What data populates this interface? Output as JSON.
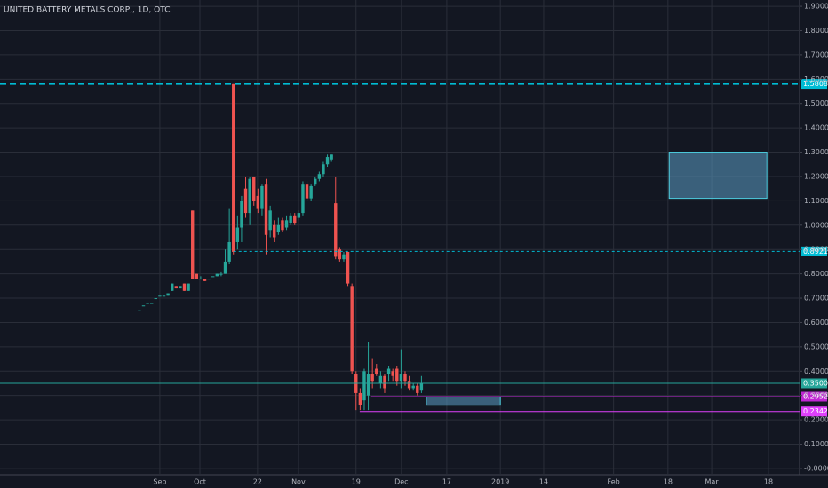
{
  "chart_data": {
    "type": "candlestick",
    "title": "UNITED BATTERY METALS CORP,, 1D, OTC",
    "up_color": "#26a69a",
    "down_color": "#ef5350",
    "grid": true,
    "categories": [
      null,
      null,
      null,
      null,
      null,
      null,
      null,
      null,
      null,
      null,
      null,
      null,
      null,
      null,
      null,
      null,
      null,
      null,
      null,
      null,
      null,
      null,
      null,
      null,
      null,
      null,
      null,
      null,
      null,
      null,
      null,
      null,
      null,
      null,
      null,
      null,
      null,
      null,
      null,
      null,
      null,
      null,
      null,
      null,
      null,
      null,
      null,
      null,
      null,
      null,
      null,
      null,
      null,
      null,
      null,
      null,
      null,
      null,
      null,
      null,
      null,
      null,
      null,
      null,
      null,
      null,
      null,
      null,
      null,
      null
    ],
    "open": [
      0.65,
      0.67,
      0.68,
      0.68,
      0.7,
      0.71,
      0.71,
      0.71,
      0.73,
      0.75,
      0.74,
      0.76,
      0.73,
      1.06,
      0.8,
      0.78,
      0.78,
      0.78,
      0.79,
      0.79,
      0.8,
      0.8,
      0.85,
      1.58,
      0.93,
      0.99,
      1.15,
      1.05,
      1.2,
      1.12,
      1.07,
      1.17,
      0.98,
      1.0,
      0.97,
      1.02,
      0.99,
      1.01,
      1.04,
      1.03,
      1.05,
      1.17,
      1.11,
      1.17,
      1.19,
      1.21,
      1.25,
      1.27,
      1.09,
      0.9,
      0.86,
      0.89,
      0.75,
      0.39,
      0.31,
      0.28,
      0.3,
      0.39,
      0.41,
      0.35,
      0.38,
      0.39,
      0.4,
      0.41,
      0.36,
      0.39,
      0.36,
      0.33,
      0.34,
      0.32
    ],
    "high": [
      0.65,
      0.67,
      0.68,
      0.68,
      0.7,
      0.71,
      0.71,
      0.72,
      0.76,
      0.75,
      0.75,
      0.76,
      0.76,
      1.06,
      0.8,
      0.79,
      0.78,
      0.78,
      0.79,
      0.8,
      0.81,
      0.9,
      1.07,
      1.58,
      1.04,
      1.12,
      1.2,
      1.2,
      1.2,
      1.15,
      1.17,
      1.19,
      1.08,
      1.02,
      1.03,
      1.03,
      1.04,
      1.05,
      1.05,
      1.06,
      1.18,
      1.18,
      1.17,
      1.2,
      1.22,
      1.26,
      1.29,
      1.29,
      1.2,
      0.91,
      0.89,
      0.89,
      0.76,
      0.4,
      0.33,
      0.41,
      0.52,
      0.45,
      0.43,
      0.4,
      0.39,
      0.42,
      0.41,
      0.42,
      0.49,
      0.4,
      0.38,
      0.35,
      0.35,
      0.38
    ],
    "low": [
      0.65,
      0.67,
      0.68,
      0.68,
      0.7,
      0.71,
      0.71,
      0.71,
      0.73,
      0.74,
      0.74,
      0.73,
      0.73,
      0.78,
      0.78,
      0.78,
      0.77,
      0.78,
      0.79,
      0.79,
      0.79,
      0.8,
      0.84,
      0.88,
      0.9,
      0.93,
      1.03,
      1.0,
      1.08,
      1.05,
      1.04,
      0.88,
      0.95,
      0.93,
      0.96,
      0.97,
      0.98,
      1.0,
      1.0,
      1.02,
      1.04,
      1.1,
      1.1,
      1.16,
      1.18,
      1.2,
      1.24,
      1.26,
      0.86,
      0.85,
      0.85,
      0.75,
      0.39,
      0.24,
      0.24,
      0.24,
      0.24,
      0.33,
      0.38,
      0.33,
      0.31,
      0.36,
      0.36,
      0.34,
      0.33,
      0.34,
      0.32,
      0.32,
      0.3,
      0.31
    ],
    "close": [
      0.65,
      0.67,
      0.68,
      0.68,
      0.7,
      0.71,
      0.71,
      0.72,
      0.76,
      0.74,
      0.75,
      0.73,
      0.76,
      0.78,
      0.78,
      0.78,
      0.77,
      0.78,
      0.79,
      0.8,
      0.8,
      0.85,
      0.93,
      0.89,
      0.99,
      1.1,
      1.05,
      1.19,
      1.1,
      1.07,
      1.16,
      0.96,
      1.06,
      0.95,
      1.0,
      0.98,
      1.02,
      1.04,
      1.01,
      1.05,
      1.17,
      1.11,
      1.16,
      1.19,
      1.21,
      1.25,
      1.28,
      1.29,
      0.87,
      0.86,
      0.88,
      0.76,
      0.4,
      0.31,
      0.26,
      0.4,
      0.39,
      0.36,
      0.39,
      0.38,
      0.33,
      0.41,
      0.38,
      0.36,
      0.39,
      0.36,
      0.33,
      0.34,
      0.31,
      0.35
    ],
    "xlim": [
      -34.1,
      161.5
    ],
    "xticks": [
      {
        "value": 5,
        "label": "Sep"
      },
      {
        "value": 14.8,
        "label": "Oct"
      },
      {
        "value": 28.9,
        "label": "22"
      },
      {
        "value": 38.9,
        "label": "Nov"
      },
      {
        "value": 53,
        "label": "19"
      },
      {
        "value": 64.1,
        "label": "Dec"
      },
      {
        "value": 75.2,
        "label": "17"
      },
      {
        "value": 88.3,
        "label": "2019"
      },
      {
        "value": 98.9,
        "label": "14"
      },
      {
        "value": 116,
        "label": "Feb"
      },
      {
        "value": 129.3,
        "label": "18"
      },
      {
        "value": 140,
        "label": "Mar"
      },
      {
        "value": 153.9,
        "label": "18"
      }
    ],
    "ylim": [
      -0.0258,
      1.9258
    ],
    "yticks": [
      {
        "value": 1.9,
        "label": "1.9000"
      },
      {
        "value": 1.8,
        "label": "1.8000"
      },
      {
        "value": 1.7,
        "label": "1.7000"
      },
      {
        "value": 1.6,
        "label": "1.6000"
      },
      {
        "value": 1.5,
        "label": "1.5000"
      },
      {
        "value": 1.4,
        "label": "1.4000"
      },
      {
        "value": 1.3,
        "label": "1.3000"
      },
      {
        "value": 1.2,
        "label": "1.2000"
      },
      {
        "value": 1.1,
        "label": "1.1000"
      },
      {
        "value": 1.0,
        "label": "1.0000"
      },
      {
        "value": 0.9,
        "label": "0.9000"
      },
      {
        "value": 0.8,
        "label": "0.8000"
      },
      {
        "value": 0.7,
        "label": "0.7000"
      },
      {
        "value": 0.6,
        "label": "0.6000"
      },
      {
        "value": 0.5,
        "label": "0.5000"
      },
      {
        "value": 0.4,
        "label": "0.4000"
      },
      {
        "value": 0.3,
        "label": "0.3000"
      },
      {
        "value": 0.2,
        "label": "0.2000"
      },
      {
        "value": 0.1,
        "label": "0.1000"
      },
      {
        "value": 0,
        "label": "-0.0000"
      }
    ],
    "levels": [
      {
        "value": 1.5808,
        "label": "1.5808",
        "color": "#00bcd4",
        "dashed": true,
        "from": -34.1
      },
      {
        "value": 0.8921,
        "label": "0.8921",
        "color": "#00bcd4",
        "dashed": true,
        "from": 23
      },
      {
        "value": 0.35,
        "label": "0.3500",
        "color": "#26a69a",
        "dashed": false,
        "from": -34.1
      },
      {
        "value": 0.2952,
        "label": "0.2952",
        "color": "#c026d3",
        "dashed": false,
        "from": 56.7
      },
      {
        "value": 0.2342,
        "label": "0.2342",
        "color": "#e040fb",
        "dashed": false,
        "from": 53.9
      }
    ],
    "zones": [
      {
        "x": [
          129.6,
          153.5
        ],
        "y": [
          1.11,
          1.3
        ]
      },
      {
        "x": [
          70.2,
          88.3
        ],
        "y": [
          0.26,
          0.295
        ]
      }
    ]
  }
}
